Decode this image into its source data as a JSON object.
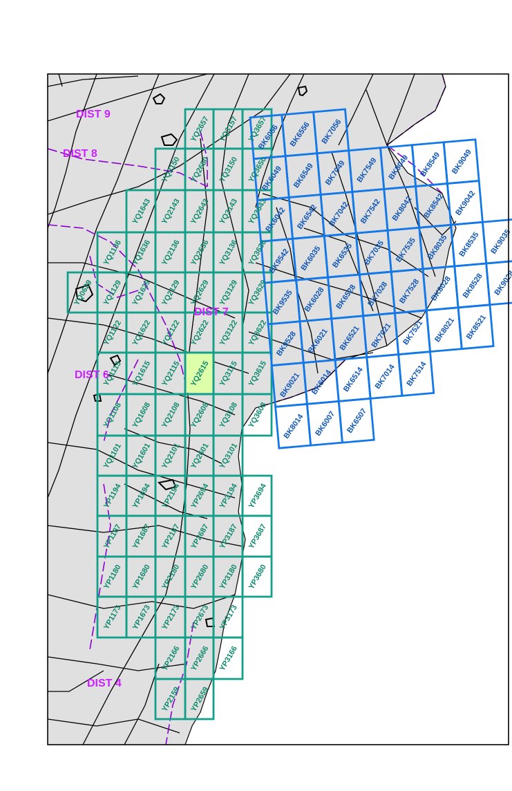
{
  "colors": {
    "land": "#e0e0e0",
    "district_line": "#8800cc",
    "grid_yq": "#13a08a",
    "grid_bk": "#1478e6",
    "label_yq": "#0f8a6e",
    "label_bk": "#1057b5",
    "district_label": "#cc22ff",
    "highlight": "#ddffaa"
  },
  "districts": [
    {
      "label": "DIST 9"
    },
    {
      "label": "DIST 8"
    },
    {
      "label": "DIST 7"
    },
    {
      "label": "DIST 6"
    },
    {
      "label": "DIST 4"
    }
  ],
  "highlighted_tile": "YQ2615",
  "yq_tiles": [
    "YQ2657",
    "YQ3157",
    "YQ2150",
    "YQ2650",
    "YQ3150",
    "YQ1643",
    "YQ2143",
    "YQ2643",
    "YQ3143",
    "YQ1136",
    "YQ1636",
    "YQ2136",
    "YQ2636",
    "YQ3136",
    "YQ0629",
    "YQ1129",
    "YQ1629",
    "YQ2129",
    "YQ2629",
    "YQ3129",
    "YQ1122",
    "YQ1622",
    "YQ2122",
    "YQ2622",
    "YQ3122",
    "YQ1115",
    "YQ1615",
    "YQ2115",
    "YQ2615",
    "YQ3115",
    "YQ1108",
    "YQ1608",
    "YQ2108",
    "YQ2608",
    "YQ3108",
    "YQ1101",
    "YQ1601",
    "YQ2101",
    "YQ2601",
    "YQ3101",
    "YP1194",
    "YP1694",
    "YP2194",
    "YP2694",
    "YP3194",
    "YP3694",
    "YP1187",
    "YP1687",
    "YP2187",
    "YP2687",
    "YP3187",
    "YP3687",
    "YP1180",
    "YP1680",
    "YP2180",
    "YP2680",
    "YP3180",
    "YP3680",
    "YP1173",
    "YP1673",
    "YP2173",
    "YP2673",
    "YP3173",
    "YP2166",
    "YP2666",
    "YP3166",
    "YP2159",
    "YP2659"
  ],
  "yq_right_col": [
    "YQ3657",
    "YQ3650",
    "YQ3643",
    "YQ3636",
    "YQ3629",
    "YQ3622",
    "YQ3615",
    "YQ3608"
  ],
  "bk_tiles": [
    "BK6056",
    "BK6556",
    "BK7056",
    "BK6049",
    "BK6549",
    "BK7049",
    "BK7549",
    "BK8049",
    "BK8549",
    "BK9049",
    "BK6042",
    "BK6542",
    "BK7042",
    "BK7542",
    "BK8042",
    "BK8542",
    "BK9042",
    "BK9542",
    "BK6035",
    "BK6535",
    "BK7035",
    "BK7535",
    "BK8035",
    "BK8535",
    "BK9035",
    "BK9535",
    "BK6028",
    "BK6528",
    "BK7028",
    "BK7528",
    "BK8028",
    "BK8528",
    "BK9028",
    "BK9528",
    "BK6021",
    "BK6521",
    "BK7021",
    "BK7521",
    "BK8021",
    "BK8521",
    "BK9021",
    "BK6014",
    "BK6514",
    "BK7014",
    "BK7514",
    "BK8014",
    "BK6007",
    "BK6507",
    "BK7007"
  ]
}
